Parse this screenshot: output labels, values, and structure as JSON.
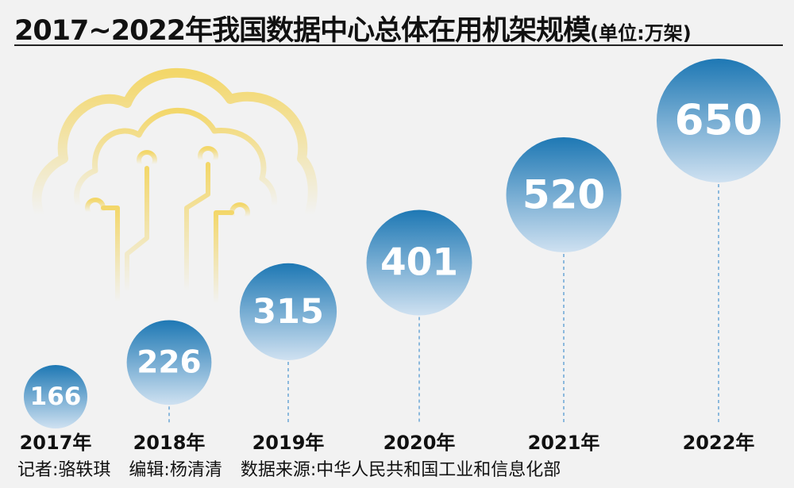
{
  "title": "2017~2022年我国数据中心总体在用机架规模",
  "unit_note": "(单位:万架)",
  "credits": {
    "reporter": "记者:骆轶琪",
    "editor": "编辑:杨清清",
    "source": "数据来源:中华人民共和国工业和信息化部"
  },
  "decoration": {
    "icon": "cloud-circuit-icon",
    "color": "#f3d76a"
  },
  "colors": {
    "bubble_top": "#1e78b4",
    "bubble_bottom": "#cfe1f1",
    "connector": "#6aa6d6"
  },
  "chart_data": {
    "type": "bubble",
    "title": "2017~2022年我国数据中心总体在用机架规模",
    "unit": "万架",
    "categories": [
      "2017年",
      "2018年",
      "2019年",
      "2020年",
      "2021年",
      "2022年"
    ],
    "values": [
      166,
      226,
      315,
      401,
      520,
      650
    ],
    "data_labels": [
      "166",
      "226",
      "315",
      "401",
      "520",
      "650"
    ]
  }
}
